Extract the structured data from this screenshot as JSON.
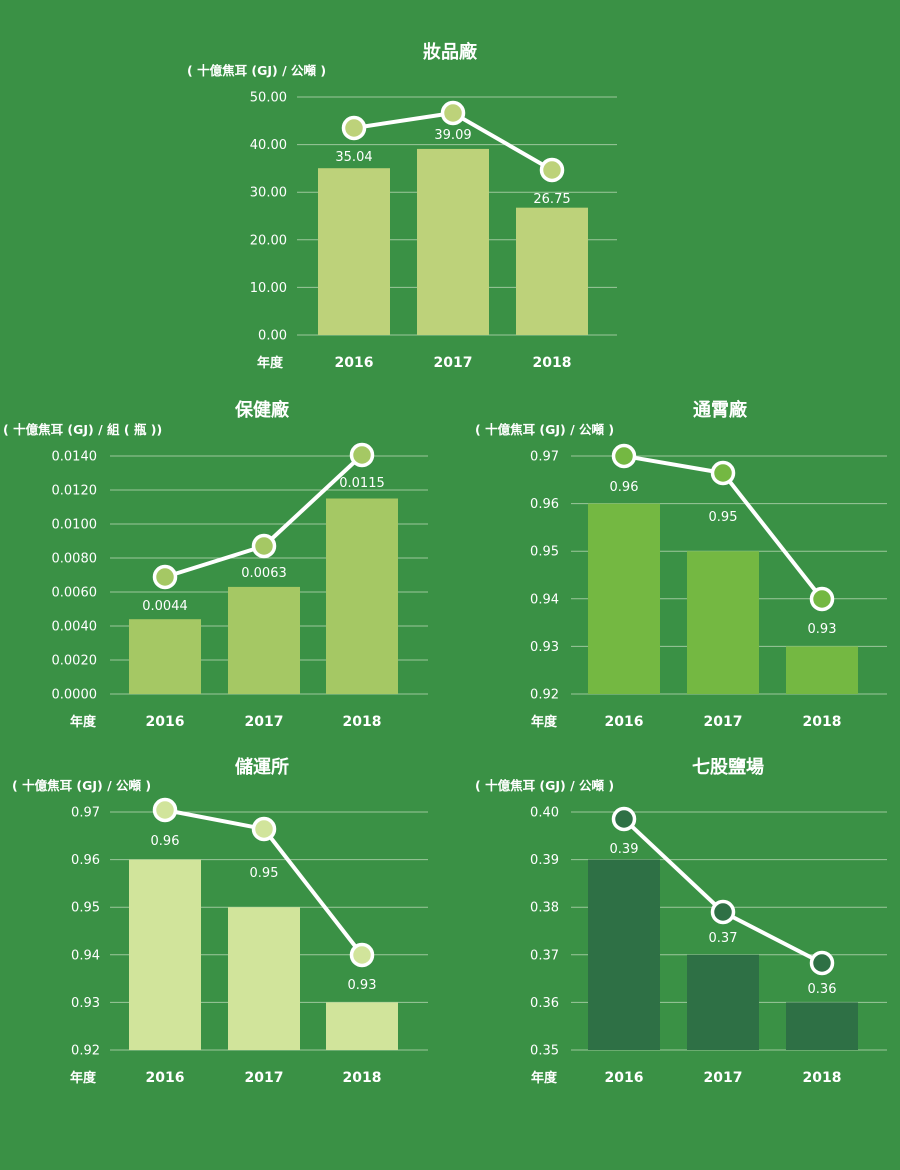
{
  "chart_data": [
    {
      "type": "bar",
      "title": "妝品廠",
      "unit_label": "( 十億焦耳 (GJ) / 公噸 )",
      "x_axis_label": "年度",
      "categories": [
        "2016",
        "2017",
        "2018"
      ],
      "values": [
        35.04,
        39.09,
        26.75
      ],
      "value_labels": [
        "35.04",
        "39.09",
        "26.75"
      ],
      "y_ticks": [
        "0.00",
        "10.00",
        "20.00",
        "30.00",
        "40.00",
        "50.00"
      ],
      "ylim": [
        0,
        50
      ],
      "line_overlay": true,
      "bar_color": "#bdd27a",
      "marker_color": "#bdd27a"
    },
    {
      "type": "bar",
      "title": "保健廠",
      "unit_label": "( 十億焦耳 (GJ) / 組 ( 瓶 ))",
      "x_axis_label": "年度",
      "categories": [
        "2016",
        "2017",
        "2018"
      ],
      "values": [
        0.0044,
        0.0063,
        0.0115
      ],
      "value_labels": [
        "0.0044",
        "0.0063",
        "0.0115"
      ],
      "y_ticks": [
        "0.0000",
        "0.0020",
        "0.0040",
        "0.0060",
        "0.0080",
        "0.0100",
        "0.0120",
        "0.0140"
      ],
      "ylim": [
        0,
        0.014
      ],
      "line_overlay": true,
      "bar_color": "#a5c864",
      "marker_color": "#a5c864"
    },
    {
      "type": "bar",
      "title": "通霄廠",
      "unit_label": "( 十億焦耳 (GJ) / 公噸 )",
      "x_axis_label": "年度",
      "categories": [
        "2016",
        "2017",
        "2018"
      ],
      "values": [
        0.96,
        0.95,
        0.93
      ],
      "value_labels": [
        "0.96",
        "0.95",
        "0.93"
      ],
      "y_ticks": [
        "0.92",
        "0.93",
        "0.94",
        "0.95",
        "0.96",
        "0.97"
      ],
      "ylim": [
        0.92,
        0.97
      ],
      "line_overlay": true,
      "bar_color": "#74b842",
      "marker_color": "#74b842"
    },
    {
      "type": "bar",
      "title": "儲運所",
      "unit_label": "( 十億焦耳 (GJ) / 公噸 )",
      "x_axis_label": "年度",
      "categories": [
        "2016",
        "2017",
        "2018"
      ],
      "values": [
        0.96,
        0.95,
        0.93
      ],
      "value_labels": [
        "0.96",
        "0.95",
        "0.93"
      ],
      "y_ticks": [
        "0.92",
        "0.93",
        "0.94",
        "0.95",
        "0.96",
        "0.97"
      ],
      "ylim": [
        0.92,
        0.97
      ],
      "line_overlay": true,
      "bar_color": "#d1e49b",
      "marker_color": "#d1e49b"
    },
    {
      "type": "bar",
      "title": "七股鹽場",
      "unit_label": "( 十億焦耳 (GJ) / 公噸 )",
      "x_axis_label": "年度",
      "categories": [
        "2016",
        "2017",
        "2018"
      ],
      "values": [
        0.39,
        0.37,
        0.36
      ],
      "value_labels": [
        "0.39",
        "0.37",
        "0.36"
      ],
      "y_ticks": [
        "0.35",
        "0.36",
        "0.37",
        "0.38",
        "0.39",
        "0.40"
      ],
      "ylim": [
        0.35,
        0.4
      ],
      "line_overlay": true,
      "bar_color": "#2e7045",
      "marker_color": "#2e7045"
    }
  ]
}
